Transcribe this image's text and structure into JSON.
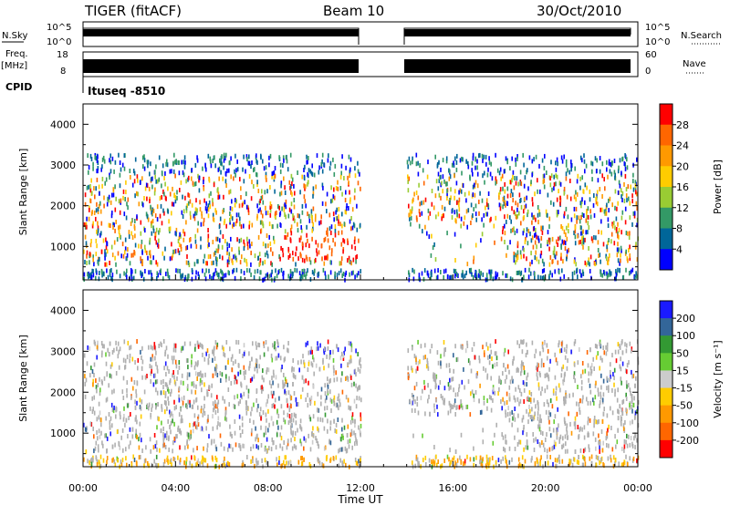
{
  "header": {
    "title": "TIGER (fitACF)",
    "beam": "Beam 10",
    "date": "30/Oct/2010"
  },
  "strips": {
    "nsky_label": "N.Sky",
    "nsky_ticks": [
      "10^5",
      "10^0"
    ],
    "nsearch_label": "N.Search",
    "nsearch_ticks": [
      "10^5",
      "10^0"
    ],
    "freq_label_1": "Freq.",
    "freq_label_2": "[MHz]",
    "freq_ticks": [
      "18",
      "8"
    ],
    "nave_label": "Nave",
    "nave_ticks": [
      "60",
      "0"
    ],
    "cpid_label": "CPID",
    "cpid_value": "Itusеq -8510"
  },
  "chart_data": [
    {
      "type": "heatmap",
      "ylabel": "Slant Range [km]",
      "xlabel": "Time UT",
      "x_ticks": [
        "00:00",
        "04:00",
        "08:00",
        "12:00",
        "16:00",
        "20:00",
        "00:00"
      ],
      "xlim_hours": [
        0,
        24
      ],
      "y_ticks": [
        1000,
        2000,
        3000,
        4000
      ],
      "ylim": [
        180,
        4500
      ],
      "data_gap_hours": [
        12,
        14
      ],
      "colorbar": {
        "label": "Power [dB]",
        "ticks": [
          "28",
          "24",
          "20",
          "16",
          "12",
          "8",
          "4"
        ],
        "colors": [
          "#ff0000",
          "#ff6600",
          "#ff9900",
          "#ffcc00",
          "#99cc33",
          "#339966",
          "#006699",
          "#0000ff"
        ]
      }
    },
    {
      "type": "heatmap",
      "ylabel": "Slant Range [km]",
      "xlabel": "Time UT",
      "x_ticks": [
        "00:00",
        "04:00",
        "08:00",
        "12:00",
        "16:00",
        "20:00",
        "00:00"
      ],
      "xlim_hours": [
        0,
        24
      ],
      "y_ticks": [
        1000,
        2000,
        3000,
        4000
      ],
      "ylim": [
        180,
        4500
      ],
      "data_gap_hours": [
        12,
        14
      ],
      "colorbar": {
        "label": "Velocity [m s⁻¹]",
        "ticks": [
          "200",
          "100",
          "50",
          "15",
          "-15",
          "-50",
          "-100",
          "-200"
        ],
        "colors": [
          "#1a1aff",
          "#336699",
          "#339933",
          "#66cc33",
          "#cccccc",
          "#ffcc00",
          "#ff9900",
          "#ff6600",
          "#ff0000"
        ]
      }
    }
  ],
  "colors": {
    "ground_scatter": "#b0b0b0"
  }
}
